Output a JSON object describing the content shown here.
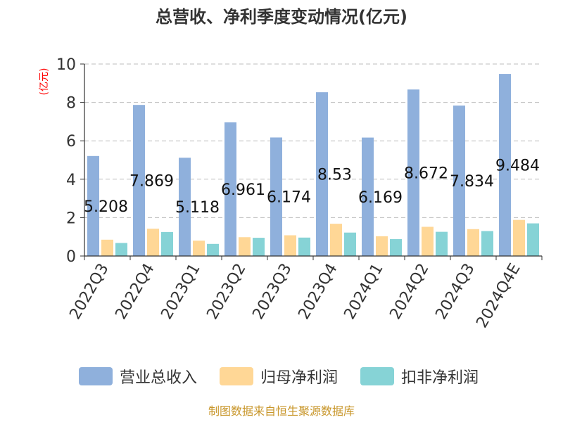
{
  "chart_data": {
    "type": "bar",
    "title": "总营收、净利季度变动情况(亿元)",
    "ylabel": "(亿元)",
    "xlabel": "",
    "ylim": [
      0,
      10
    ],
    "yticks": [
      0,
      2,
      4,
      6,
      8,
      10
    ],
    "grid": true,
    "legend_position": "bottom",
    "categories": [
      "2022Q3",
      "2022Q4",
      "2023Q1",
      "2023Q2",
      "2023Q3",
      "2023Q4",
      "2024Q1",
      "2024Q2",
      "2024Q3",
      "2024Q4E"
    ],
    "series": [
      {
        "name": "营业总收入",
        "color": "#8fb0dc",
        "values": [
          5.208,
          7.869,
          5.118,
          6.961,
          6.174,
          8.53,
          6.169,
          8.672,
          7.834,
          9.484
        ],
        "labels": [
          "5.208",
          "7.869",
          "5.118",
          "6.961",
          "6.174",
          "8.53",
          "6.169",
          "8.672",
          "7.834",
          "9.484"
        ]
      },
      {
        "name": "归母净利润",
        "color": "#ffd796",
        "values": [
          0.85,
          1.42,
          0.8,
          0.98,
          1.08,
          1.68,
          1.03,
          1.52,
          1.4,
          1.88
        ]
      },
      {
        "name": "扣非净利润",
        "color": "#86d3d6",
        "values": [
          0.68,
          1.25,
          0.63,
          0.95,
          0.96,
          1.22,
          0.88,
          1.26,
          1.3,
          1.7
        ]
      }
    ]
  },
  "footer": {
    "source": "制图数据来自恒生聚源数据库"
  }
}
